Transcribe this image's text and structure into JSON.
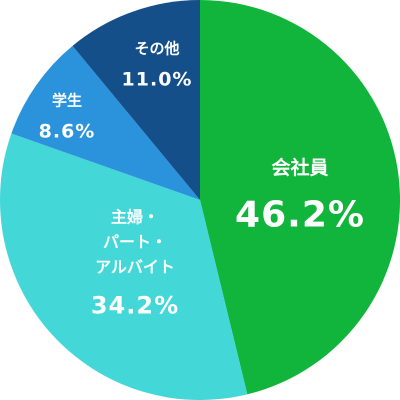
{
  "chart_data": {
    "type": "pie",
    "slices": [
      {
        "label": [
          "会社員"
        ],
        "value_text": "46.2%",
        "value": 46.2,
        "color": "#12b53c"
      },
      {
        "label": [
          "主婦・",
          "パート・",
          "アルバイト"
        ],
        "value_text": "34.2%",
        "value": 34.2,
        "color": "#43d7d7"
      },
      {
        "label": [
          "学生"
        ],
        "value_text": "8.6%",
        "value": 8.6,
        "color": "#2a93db"
      },
      {
        "label": [
          "その他"
        ],
        "value_text": "11.0%",
        "value": 11.0,
        "color": "#154f8a"
      }
    ]
  }
}
